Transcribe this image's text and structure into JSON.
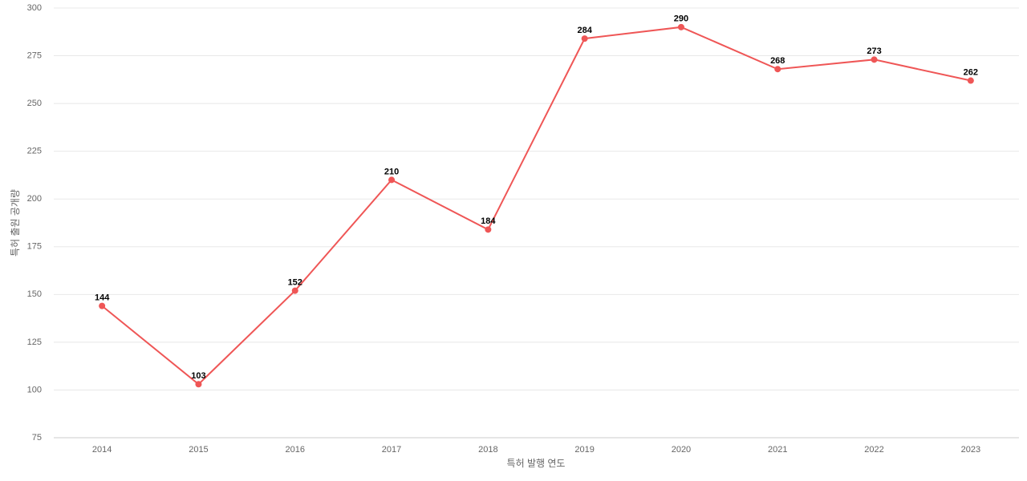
{
  "chart_data": {
    "type": "line",
    "x_label": "특허 발행 연도",
    "y_label": "특허 출원 공개량",
    "categories": [
      "2014",
      "2015",
      "2016",
      "2017",
      "2018",
      "2019",
      "2020",
      "2021",
      "2022",
      "2023"
    ],
    "series": [
      {
        "color": "#ef5656",
        "values": [
          144,
          103,
          152,
          210,
          184,
          284,
          290,
          268,
          273,
          262
        ]
      }
    ],
    "ylim": [
      75,
      300
    ],
    "yticks": [
      75,
      100,
      125,
      150,
      175,
      200,
      225,
      250,
      275,
      300
    ],
    "grid": true
  }
}
